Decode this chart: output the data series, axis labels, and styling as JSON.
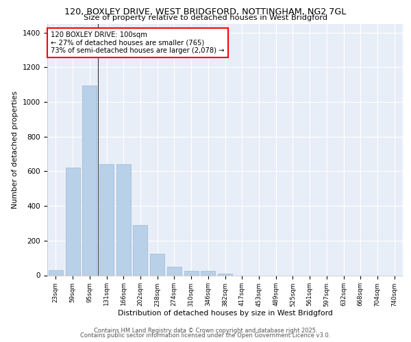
{
  "title_line1": "120, BOXLEY DRIVE, WEST BRIDGFORD, NOTTINGHAM, NG2 7GL",
  "title_line2": "Size of property relative to detached houses in West Bridgford",
  "xlabel": "Distribution of detached houses by size in West Bridgford",
  "ylabel": "Number of detached properties",
  "categories": [
    "23sqm",
    "59sqm",
    "95sqm",
    "131sqm",
    "166sqm",
    "202sqm",
    "238sqm",
    "274sqm",
    "310sqm",
    "346sqm",
    "382sqm",
    "417sqm",
    "453sqm",
    "489sqm",
    "525sqm",
    "561sqm",
    "597sqm",
    "632sqm",
    "668sqm",
    "704sqm",
    "740sqm"
  ],
  "values": [
    30,
    620,
    1095,
    640,
    640,
    290,
    125,
    50,
    25,
    25,
    10,
    0,
    0,
    0,
    0,
    0,
    0,
    0,
    0,
    0,
    0
  ],
  "bar_color": "#b8d0e8",
  "bar_edge_color": "#9ab8d8",
  "vline_x_index": 2,
  "annotation_line1": "120 BOXLEY DRIVE: 100sqm",
  "annotation_line2": "← 27% of detached houses are smaller (765)",
  "annotation_line3": "73% of semi-detached houses are larger (2,078) →",
  "vline_color": "#333333",
  "background_color": "#e8eef8",
  "grid_color": "#ffffff",
  "ylim": [
    0,
    1450
  ],
  "yticks": [
    0,
    200,
    400,
    600,
    800,
    1000,
    1200,
    1400
  ],
  "footer_line1": "Contains HM Land Registry data © Crown copyright and database right 2025.",
  "footer_line2": "Contains public sector information licensed under the Open Government Licence v3.0."
}
